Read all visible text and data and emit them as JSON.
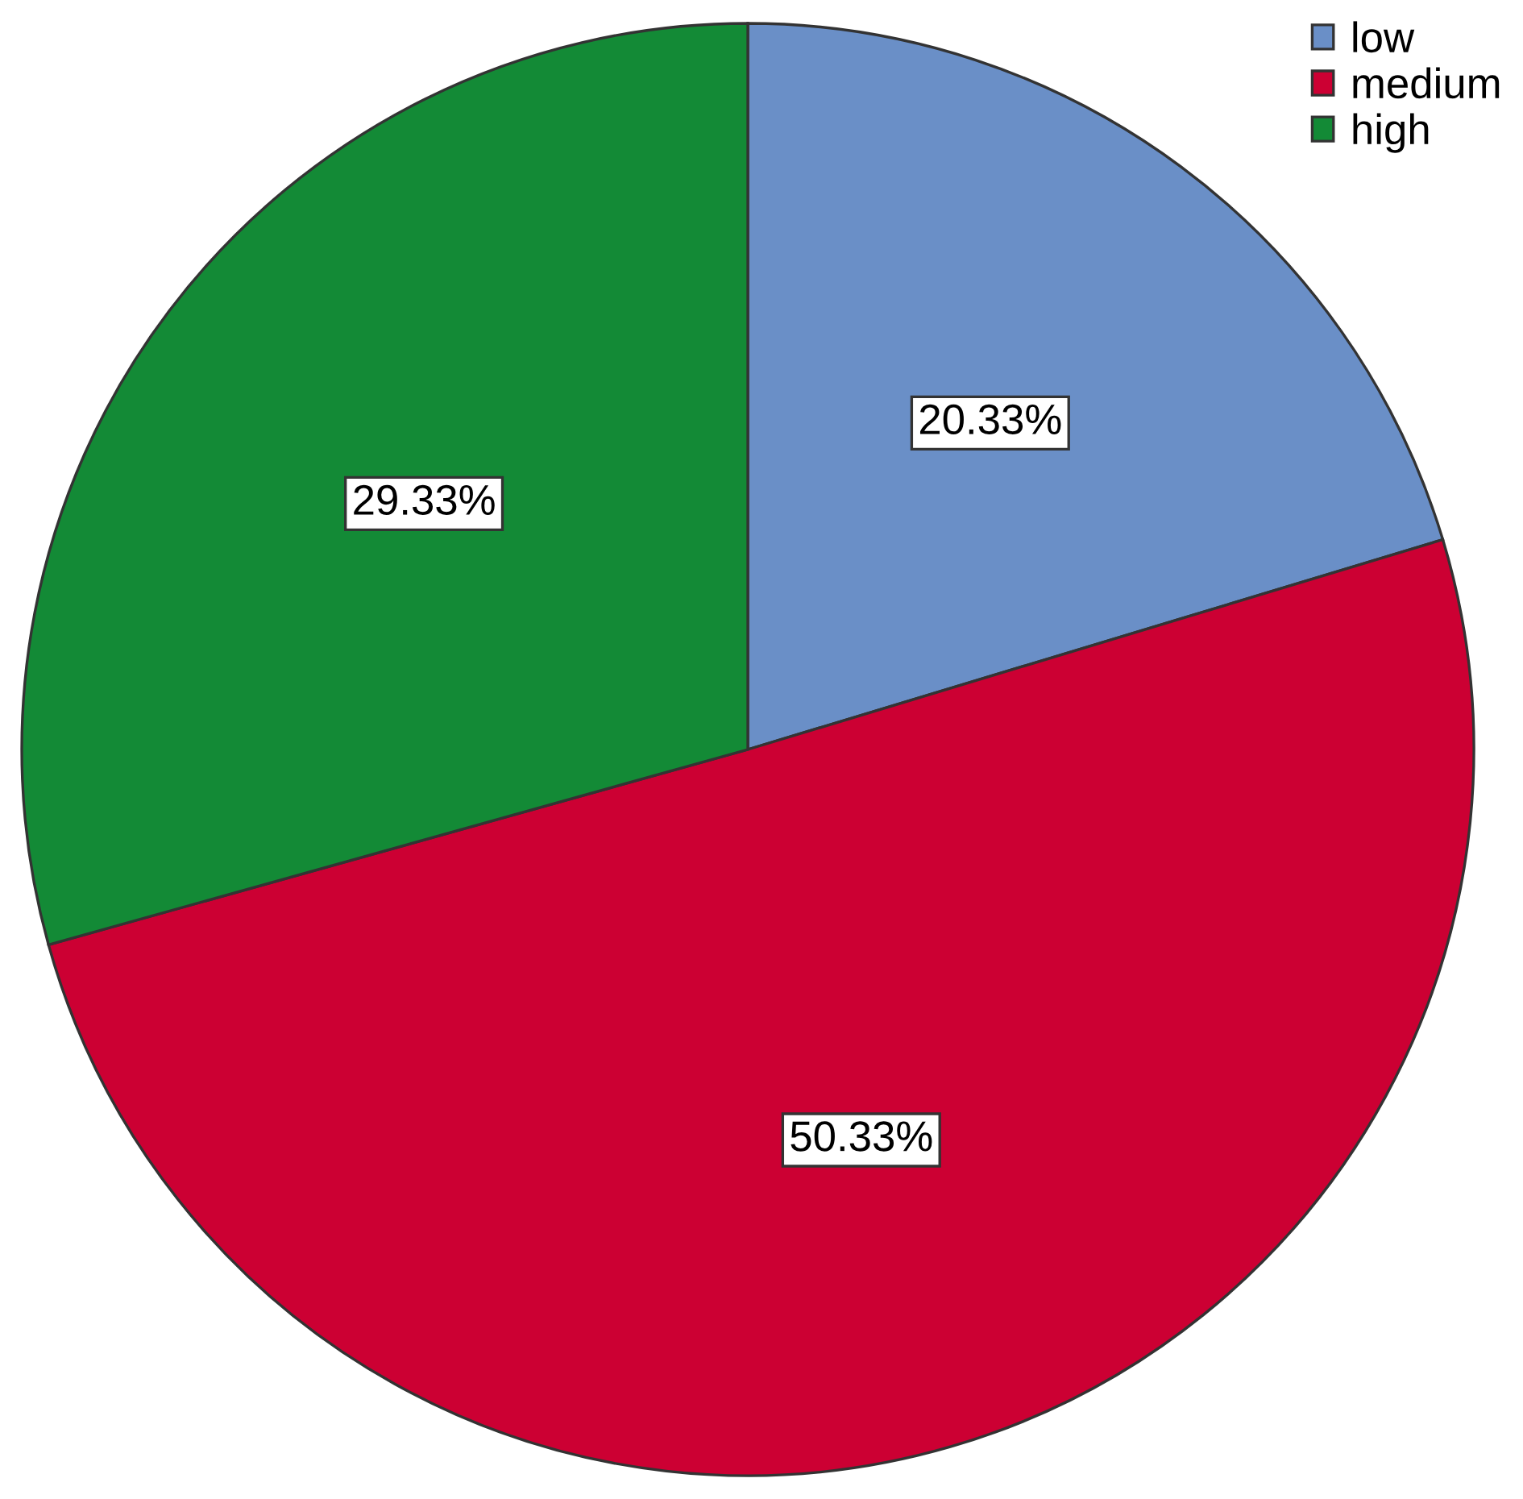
{
  "chart_data": {
    "type": "pie",
    "categories": [
      "low",
      "medium",
      "high"
    ],
    "values": [
      20.33,
      50.33,
      29.33
    ],
    "colors": [
      "#6a8fc7",
      "#cc0033",
      "#138a36"
    ],
    "value_labels": [
      "20.33%",
      "50.33%",
      "29.33%"
    ],
    "legend": "top right"
  }
}
